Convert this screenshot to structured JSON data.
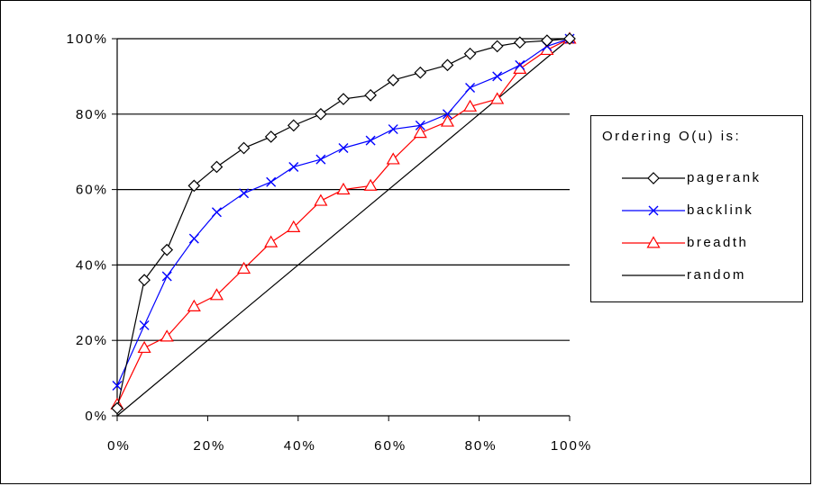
{
  "chart_data": {
    "type": "line",
    "title": "",
    "xlabel": "",
    "ylabel": "",
    "xlim": [
      0,
      100
    ],
    "ylim": [
      0,
      100
    ],
    "grid": "horizontal",
    "legend_placement": "right",
    "x_tick_labels": [
      "0%",
      "20%",
      "40%",
      "60%",
      "80%",
      "100%"
    ],
    "y_tick_labels": [
      "0%",
      "20%",
      "40%",
      "60%",
      "80%",
      "100%"
    ],
    "legend_title": "Ordering O(u) is:",
    "series": [
      {
        "name": "pagerank",
        "color": "#000000",
        "marker": "diamond",
        "x": [
          0,
          6,
          11,
          17,
          22,
          28,
          34,
          39,
          45,
          50,
          56,
          61,
          67,
          73,
          78,
          84,
          89,
          95,
          100
        ],
        "y": [
          2,
          36,
          44,
          61,
          66,
          71,
          74,
          77,
          80,
          84,
          85,
          89,
          91,
          93,
          96,
          98,
          99,
          99.5,
          100
        ]
      },
      {
        "name": "backlink",
        "color": "#0000ff",
        "marker": "x",
        "x": [
          0,
          6,
          11,
          17,
          22,
          28,
          34,
          39,
          45,
          50,
          56,
          61,
          67,
          73,
          78,
          84,
          89,
          95,
          100
        ],
        "y": [
          8,
          24,
          37,
          47,
          54,
          59,
          62,
          66,
          68,
          71,
          73,
          76,
          77,
          80,
          87,
          90,
          93,
          98,
          100
        ]
      },
      {
        "name": "breadth",
        "color": "#ff0000",
        "marker": "triangle",
        "x": [
          0,
          6,
          11,
          17,
          22,
          28,
          34,
          39,
          45,
          50,
          56,
          61,
          67,
          73,
          78,
          84,
          89,
          95,
          100
        ],
        "y": [
          3,
          18,
          21,
          29,
          32,
          39,
          46,
          50,
          57,
          60,
          61,
          68,
          75,
          78,
          82,
          84,
          92,
          97,
          100
        ]
      },
      {
        "name": "random",
        "color": "#000000",
        "marker": "none",
        "x": [
          0,
          100
        ],
        "y": [
          0,
          100
        ]
      }
    ]
  }
}
